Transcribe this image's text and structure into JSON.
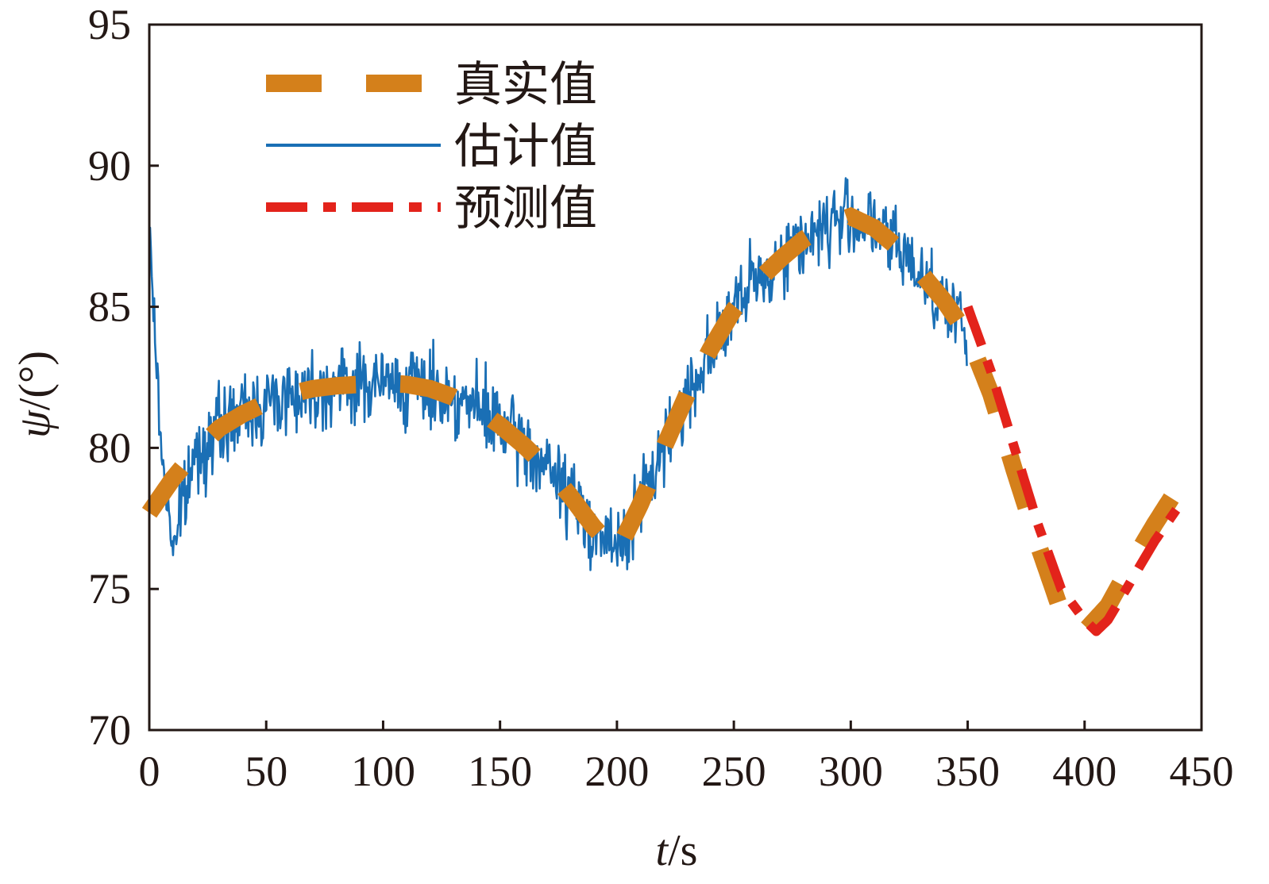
{
  "chart_data": {
    "type": "line",
    "xlabel": {
      "italic": "t",
      "rest": "/s"
    },
    "ylabel": {
      "italic": "ψ",
      "rest": "/(°)"
    },
    "xlim": [
      0,
      450
    ],
    "ylim": [
      70,
      95
    ],
    "xticks": [
      0,
      50,
      100,
      150,
      200,
      250,
      300,
      350,
      400,
      450
    ],
    "yticks": [
      70,
      75,
      80,
      85,
      90,
      95
    ],
    "grid": false,
    "legend_position": "top-left",
    "colors": {
      "true": "#D4801B",
      "estimate": "#1A6FB5",
      "predict": "#E3231B",
      "axis": "#231815"
    },
    "series": [
      {
        "name": "真实值",
        "style": "dashed",
        "color": "#D4801B",
        "x": [
          0,
          10,
          20,
          30,
          40,
          50,
          60,
          70,
          80,
          90,
          100,
          110,
          120,
          130,
          140,
          150,
          160,
          170,
          180,
          190,
          200,
          210,
          220,
          230,
          240,
          250,
          260,
          270,
          280,
          290,
          300,
          310,
          320,
          330,
          340,
          350,
          360,
          370,
          380,
          390,
          400,
          410,
          420,
          430,
          440
        ],
        "y": [
          77.7,
          78.9,
          79.9,
          80.7,
          81.2,
          81.6,
          81.9,
          82.1,
          82.2,
          82.25,
          82.3,
          82.25,
          82.1,
          81.8,
          81.4,
          80.8,
          80.1,
          79.3,
          78.3,
          77.2,
          76.3,
          78.0,
          80.0,
          81.9,
          83.5,
          84.9,
          85.9,
          86.7,
          87.4,
          87.9,
          88.2,
          87.8,
          87.1,
          86.2,
          85.2,
          84.0,
          81.9,
          79.2,
          76.6,
          74.2,
          73.5,
          74.4,
          75.9,
          77.3,
          78.6
        ]
      },
      {
        "name": "估计值",
        "style": "solid-noisy",
        "color": "#1A6FB5",
        "x": [
          0,
          5,
          10,
          20,
          30,
          40,
          50,
          60,
          70,
          80,
          90,
          100,
          110,
          120,
          130,
          140,
          150,
          160,
          170,
          180,
          190,
          200,
          210,
          220,
          230,
          240,
          250,
          260,
          270,
          280,
          290,
          300,
          310,
          320,
          330,
          340,
          350
        ],
        "y": [
          87.8,
          80.0,
          76.5,
          79.8,
          80.7,
          81.2,
          81.6,
          81.9,
          82.1,
          82.2,
          82.25,
          82.3,
          82.25,
          82.1,
          81.8,
          81.4,
          80.8,
          80.1,
          79.3,
          78.3,
          77.2,
          76.3,
          78.0,
          80.0,
          81.9,
          83.5,
          84.9,
          85.9,
          86.7,
          87.4,
          87.9,
          88.2,
          87.8,
          87.1,
          86.2,
          85.2,
          84.0
        ]
      },
      {
        "name": "预测值",
        "style": "dash-dot",
        "color": "#E3231B",
        "x": [
          350,
          360,
          370,
          380,
          390,
          400,
          405,
          410,
          420,
          430,
          440
        ],
        "y": [
          85.0,
          82.7,
          80.0,
          77.3,
          75.0,
          73.9,
          73.5,
          73.9,
          75.3,
          76.7,
          77.9
        ]
      }
    ]
  }
}
